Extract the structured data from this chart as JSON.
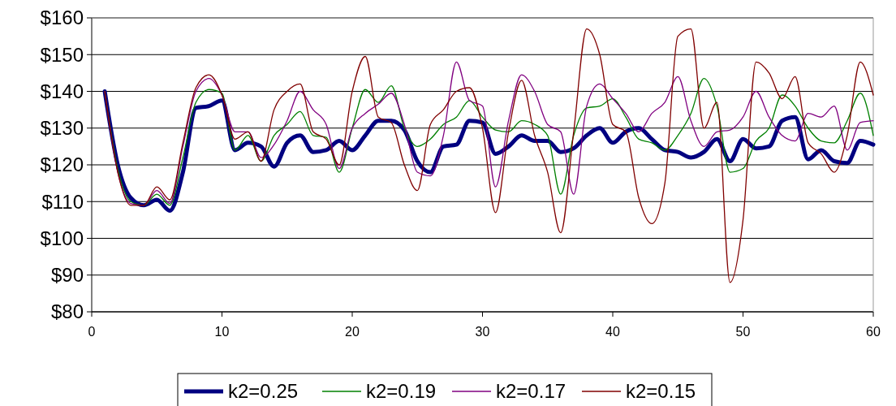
{
  "chart_data": {
    "type": "line",
    "x": [
      1,
      2,
      3,
      4,
      5,
      6,
      7,
      8,
      9,
      10,
      11,
      12,
      13,
      14,
      15,
      16,
      17,
      18,
      19,
      20,
      21,
      22,
      23,
      24,
      25,
      26,
      27,
      28,
      29,
      30,
      31,
      32,
      33,
      34,
      35,
      36,
      37,
      38,
      39,
      40,
      41,
      42,
      43,
      44,
      45,
      46,
      47,
      48,
      49,
      50,
      51,
      52,
      53,
      54,
      55,
      56,
      57,
      58,
      59,
      60
    ],
    "xlim": [
      0,
      60
    ],
    "xticks": [
      0,
      10,
      20,
      30,
      40,
      50,
      60
    ],
    "ylim": [
      80,
      160
    ],
    "yticks": [
      {
        "value": 80,
        "label": "$80"
      },
      {
        "value": 90,
        "label": "$90"
      },
      {
        "value": 100,
        "label": "$100"
      },
      {
        "value": 110,
        "label": "$110"
      },
      {
        "value": 120,
        "label": "$120"
      },
      {
        "value": 130,
        "label": "$130"
      },
      {
        "value": 140,
        "label": "$140"
      },
      {
        "value": 150,
        "label": "$150"
      },
      {
        "value": 160,
        "label": "$160"
      }
    ],
    "grid": "y",
    "legend": "bottom",
    "marker": "none",
    "line_style": "solid",
    "series": [
      {
        "name": "k2=0.25",
        "color": "#000080",
        "values": [
          140,
          120,
          111,
          109,
          110.5,
          107.5,
          118,
          135.5,
          136,
          137.5,
          124,
          126,
          125,
          119.5,
          126,
          128,
          123.5,
          124,
          126.5,
          124,
          128,
          132,
          132,
          129.5,
          121,
          118,
          125,
          125.5,
          132,
          131.5,
          123,
          125,
          128,
          126.5,
          126.5,
          123.5,
          124.5,
          128,
          130,
          126,
          129,
          130,
          127,
          124,
          123.5,
          122,
          123.5,
          127,
          121,
          127,
          124.5,
          125,
          132,
          133,
          121.5,
          124,
          121,
          120.5,
          126.5,
          125.5
        ]
      },
      {
        "name": "k2=0.19",
        "color": "#008000",
        "values": [
          140,
          119,
          110,
          109,
          112,
          109,
          122,
          137,
          140.5,
          139.5,
          124,
          128,
          121,
          128,
          131,
          134.5,
          128,
          127.5,
          118,
          130,
          140.5,
          137,
          141.5,
          130,
          125,
          127,
          131,
          133,
          137.5,
          133,
          129.5,
          129,
          132,
          131,
          128,
          112,
          128,
          135.5,
          136,
          138,
          133,
          127,
          126,
          124,
          128,
          134,
          143.5,
          136,
          118,
          119,
          126.5,
          130,
          139,
          136,
          130,
          126.5,
          126,
          132,
          139.5,
          128
        ]
      },
      {
        "name": "k2=0.17",
        "color": "#800080",
        "values": [
          140,
          118,
          109.5,
          109,
          113,
          109.5,
          125,
          140,
          143.5,
          139,
          129,
          129,
          122,
          125.5,
          132,
          140,
          135,
          131,
          119,
          130,
          134,
          136.5,
          139.5,
          131,
          118,
          117,
          128,
          148,
          137.5,
          136,
          114,
          132,
          144.5,
          140,
          131,
          129,
          112,
          136,
          142,
          138,
          134,
          129,
          134,
          137,
          144,
          132,
          125,
          129,
          129.5,
          133,
          140,
          133,
          128,
          126.5,
          134,
          133,
          136,
          124,
          131.5,
          132
        ]
      },
      {
        "name": "k2=0.15",
        "color": "#800000",
        "values": [
          140,
          118,
          109,
          109,
          114,
          110.5,
          126,
          141,
          144.5,
          139,
          127,
          129,
          121,
          135,
          140,
          142,
          129,
          127,
          120,
          140,
          149.5,
          133,
          131.5,
          120,
          113,
          131,
          135,
          140,
          141,
          130,
          107,
          129,
          143,
          128,
          118,
          101.5,
          129,
          157,
          150,
          131,
          129,
          111,
          104,
          115,
          155,
          157,
          130,
          137,
          88,
          105,
          148,
          145,
          138,
          144,
          126,
          123,
          118,
          128,
          148,
          139
        ]
      }
    ]
  }
}
